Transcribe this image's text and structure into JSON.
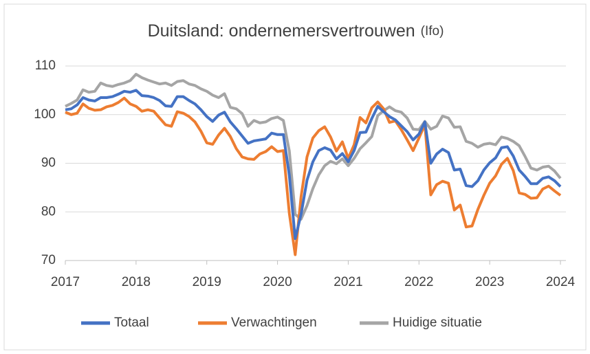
{
  "chart_data": {
    "type": "line",
    "title": "Duitsland: ondernemersvertrouwen",
    "title_note": "(Ifo)",
    "x": [
      2017.0,
      2017.083,
      2017.167,
      2017.25,
      2017.333,
      2017.417,
      2017.5,
      2017.583,
      2017.667,
      2017.75,
      2017.833,
      2017.917,
      2018.0,
      2018.083,
      2018.167,
      2018.25,
      2018.333,
      2018.417,
      2018.5,
      2018.583,
      2018.667,
      2018.75,
      2018.833,
      2018.917,
      2019.0,
      2019.083,
      2019.167,
      2019.25,
      2019.333,
      2019.417,
      2019.5,
      2019.583,
      2019.667,
      2019.75,
      2019.833,
      2019.917,
      2020.0,
      2020.083,
      2020.167,
      2020.25,
      2020.333,
      2020.417,
      2020.5,
      2020.583,
      2020.667,
      2020.75,
      2020.833,
      2020.917,
      2021.0,
      2021.083,
      2021.167,
      2021.25,
      2021.333,
      2021.417,
      2021.5,
      2021.583,
      2021.667,
      2021.75,
      2021.833,
      2021.917,
      2022.0,
      2022.083,
      2022.167,
      2022.25,
      2022.333,
      2022.417,
      2022.5,
      2022.583,
      2022.667,
      2022.75,
      2022.833,
      2022.917,
      2023.0,
      2023.083,
      2023.167,
      2023.25,
      2023.333,
      2023.417,
      2023.5,
      2023.583,
      2023.667,
      2023.75,
      2023.833,
      2023.917,
      2024.0
    ],
    "series": [
      {
        "name": "Totaal",
        "color": "#4472c4",
        "values": [
          101.0,
          101.2,
          102.0,
          103.5,
          103.0,
          102.8,
          103.5,
          103.5,
          103.7,
          104.2,
          104.8,
          104.6,
          105.0,
          103.9,
          103.8,
          103.5,
          102.9,
          101.8,
          101.7,
          103.7,
          103.7,
          102.9,
          102.2,
          101.0,
          99.6,
          98.6,
          99.9,
          100.5,
          98.5,
          97.1,
          95.6,
          94.1,
          94.6,
          94.8,
          95.0,
          96.2,
          95.9,
          95.9,
          87.5,
          74.5,
          79.5,
          86.5,
          90.3,
          92.6,
          93.2,
          92.7,
          90.9,
          92.0,
          90.3,
          92.6,
          96.3,
          96.4,
          99.2,
          101.7,
          100.6,
          99.6,
          98.9,
          97.7,
          96.5,
          94.8,
          96.0,
          98.5,
          90.0,
          91.9,
          92.9,
          92.2,
          88.6,
          88.8,
          85.4,
          85.2,
          86.4,
          88.6,
          90.1,
          91.1,
          93.2,
          93.4,
          91.5,
          88.6,
          87.3,
          85.8,
          85.8,
          86.9,
          87.2,
          86.4,
          85.2
        ]
      },
      {
        "name": "Verwachtingen",
        "color": "#ed7d31",
        "values": [
          100.5,
          100.0,
          100.3,
          102.2,
          101.3,
          100.9,
          101.0,
          101.6,
          101.9,
          102.5,
          103.4,
          102.2,
          101.7,
          100.7,
          101.0,
          100.7,
          99.3,
          97.9,
          97.6,
          100.6,
          100.3,
          99.6,
          98.5,
          96.6,
          94.2,
          93.9,
          95.8,
          97.2,
          95.5,
          93.0,
          91.3,
          90.9,
          90.8,
          91.9,
          92.4,
          93.4,
          92.4,
          92.6,
          79.7,
          71.2,
          83.1,
          91.3,
          95.2,
          96.7,
          97.5,
          95.4,
          92.5,
          94.4,
          91.0,
          93.8,
          99.4,
          98.3,
          101.4,
          102.6,
          101.2,
          98.4,
          98.7,
          96.9,
          94.8,
          92.6,
          95.2,
          98.0,
          83.5,
          85.6,
          86.3,
          85.9,
          80.4,
          81.4,
          76.9,
          77.1,
          80.5,
          83.4,
          85.9,
          87.4,
          89.8,
          91.0,
          88.5,
          83.9,
          83.6,
          82.8,
          82.9,
          84.7,
          85.3,
          84.3,
          83.4
        ]
      },
      {
        "name": "Huidige situatie",
        "color": "#a5a5a5",
        "values": [
          101.7,
          102.3,
          103.0,
          105.1,
          104.6,
          104.8,
          106.5,
          106.0,
          105.8,
          106.2,
          106.5,
          107.0,
          108.3,
          107.6,
          107.1,
          106.7,
          106.3,
          106.5,
          106.0,
          106.8,
          107.0,
          106.3,
          106.0,
          105.3,
          104.8,
          104.0,
          103.5,
          104.3,
          101.5,
          101.2,
          100.2,
          97.6,
          98.8,
          98.3,
          98.5,
          99.2,
          99.5,
          98.8,
          92.5,
          79.5,
          78.5,
          81.3,
          84.8,
          87.6,
          89.5,
          90.4,
          89.9,
          90.9,
          89.5,
          91.0,
          93.0,
          94.2,
          95.5,
          99.8,
          100.8,
          101.6,
          100.8,
          100.5,
          99.3,
          97.0,
          96.9,
          98.6,
          97.0,
          97.6,
          99.7,
          99.3,
          97.4,
          97.5,
          94.5,
          94.1,
          93.3,
          93.9,
          94.1,
          93.8,
          95.4,
          95.1,
          94.5,
          93.6,
          91.4,
          89.0,
          88.6,
          89.2,
          89.4,
          88.4,
          86.9
        ]
      }
    ],
    "xlim": [
      2017,
      2024
    ],
    "xticks": [
      2017,
      2018,
      2019,
      2020,
      2021,
      2022,
      2023,
      2024
    ],
    "ylim": [
      70,
      110
    ],
    "yticks": [
      70,
      80,
      90,
      100,
      110
    ],
    "grid": true,
    "legend": "bottom"
  }
}
